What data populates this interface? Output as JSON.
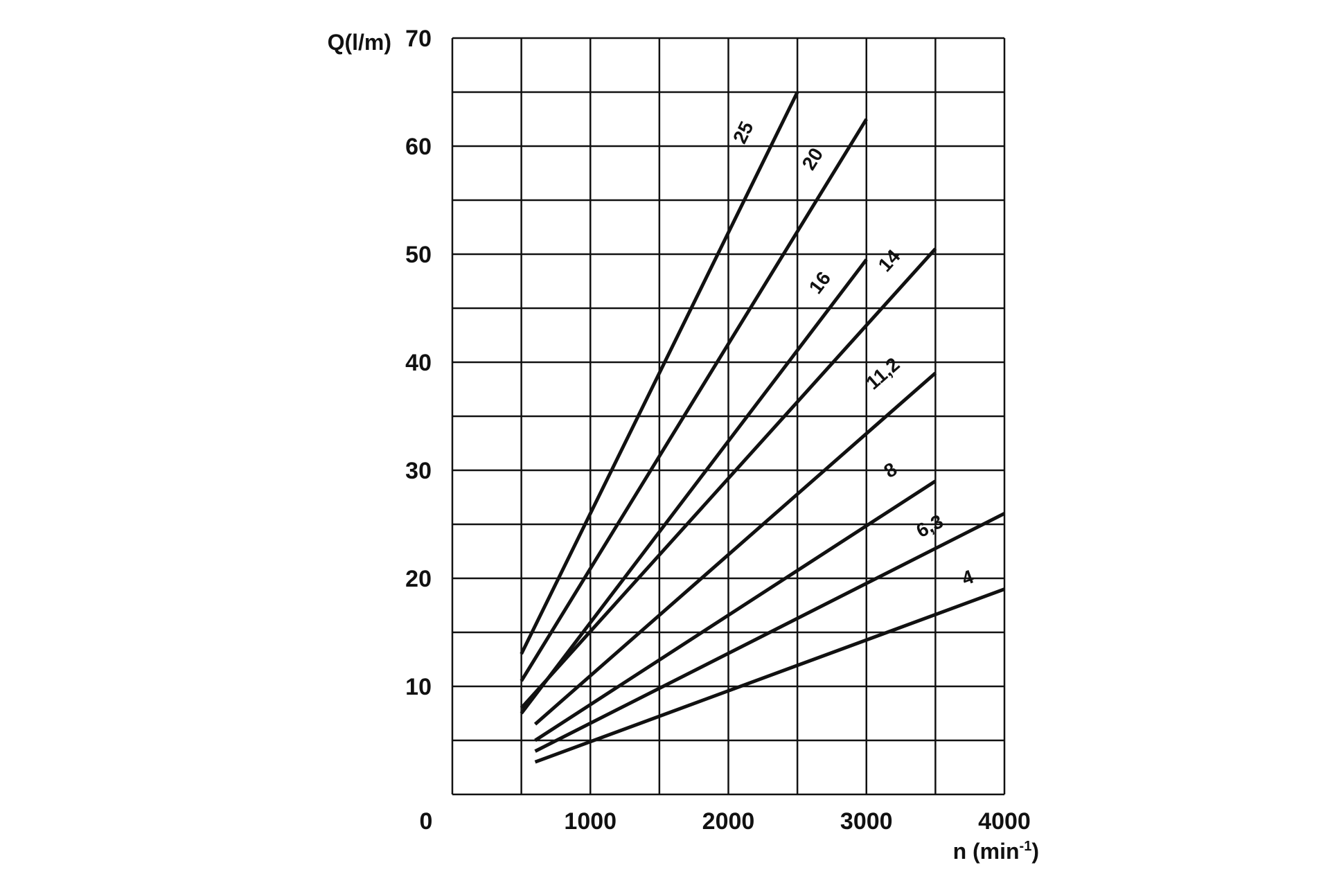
{
  "chart_data": {
    "type": "line",
    "title": "",
    "ylabel": "Q(l/m)",
    "xlabel_main": "n (min",
    "xlabel_sup": "-1",
    "xlabel_close": ")",
    "xlim": [
      0,
      4000
    ],
    "ylim": [
      0,
      70
    ],
    "grid": true,
    "x_ticks": [
      {
        "value": 0,
        "label": "0"
      },
      {
        "value": 1000,
        "label": "1000"
      },
      {
        "value": 2000,
        "label": "2000"
      },
      {
        "value": 3000,
        "label": "3000"
      },
      {
        "value": 4000,
        "label": "4000"
      }
    ],
    "y_ticks": [
      {
        "value": 10,
        "label": "10"
      },
      {
        "value": 20,
        "label": "20"
      },
      {
        "value": 30,
        "label": "30"
      },
      {
        "value": 40,
        "label": "40"
      },
      {
        "value": 50,
        "label": "50"
      },
      {
        "value": 60,
        "label": "60"
      },
      {
        "value": 70,
        "label": "70"
      }
    ],
    "grid_x": [
      0,
      500,
      1000,
      1500,
      2000,
      2500,
      3000,
      3500,
      4000
    ],
    "grid_y": [
      0,
      5,
      10,
      15,
      20,
      25,
      30,
      35,
      40,
      45,
      50,
      55,
      60,
      65,
      70
    ],
    "line_color": "#111111",
    "series": [
      {
        "name": "25",
        "x": [
          500,
          2500
        ],
        "y": [
          13,
          65
        ],
        "label_at": [
          2150,
          61
        ]
      },
      {
        "name": "20",
        "x": [
          500,
          3000
        ],
        "y": [
          10.5,
          62.5
        ],
        "label_at": [
          2650,
          58.5
        ]
      },
      {
        "name": "16",
        "x": [
          500,
          3000
        ],
        "y": [
          7.5,
          49.5
        ],
        "label_at": [
          2700,
          47
        ]
      },
      {
        "name": "14",
        "x": [
          500,
          3500
        ],
        "y": [
          8,
          50.5
        ],
        "label_at": [
          3200,
          49
        ]
      },
      {
        "name": "11,2",
        "x": [
          600,
          3500
        ],
        "y": [
          6.5,
          39
        ],
        "label_at": [
          3150,
          38.5
        ]
      },
      {
        "name": "8",
        "x": [
          600,
          3500
        ],
        "y": [
          5,
          29
        ],
        "label_at": [
          3200,
          29.5
        ]
      },
      {
        "name": "6,3",
        "x": [
          600,
          4000
        ],
        "y": [
          4,
          26
        ],
        "label_at": [
          3480,
          24.3
        ]
      },
      {
        "name": "4",
        "x": [
          600,
          4000
        ],
        "y": [
          3,
          19
        ],
        "label_at": [
          3750,
          19.5
        ]
      }
    ]
  }
}
